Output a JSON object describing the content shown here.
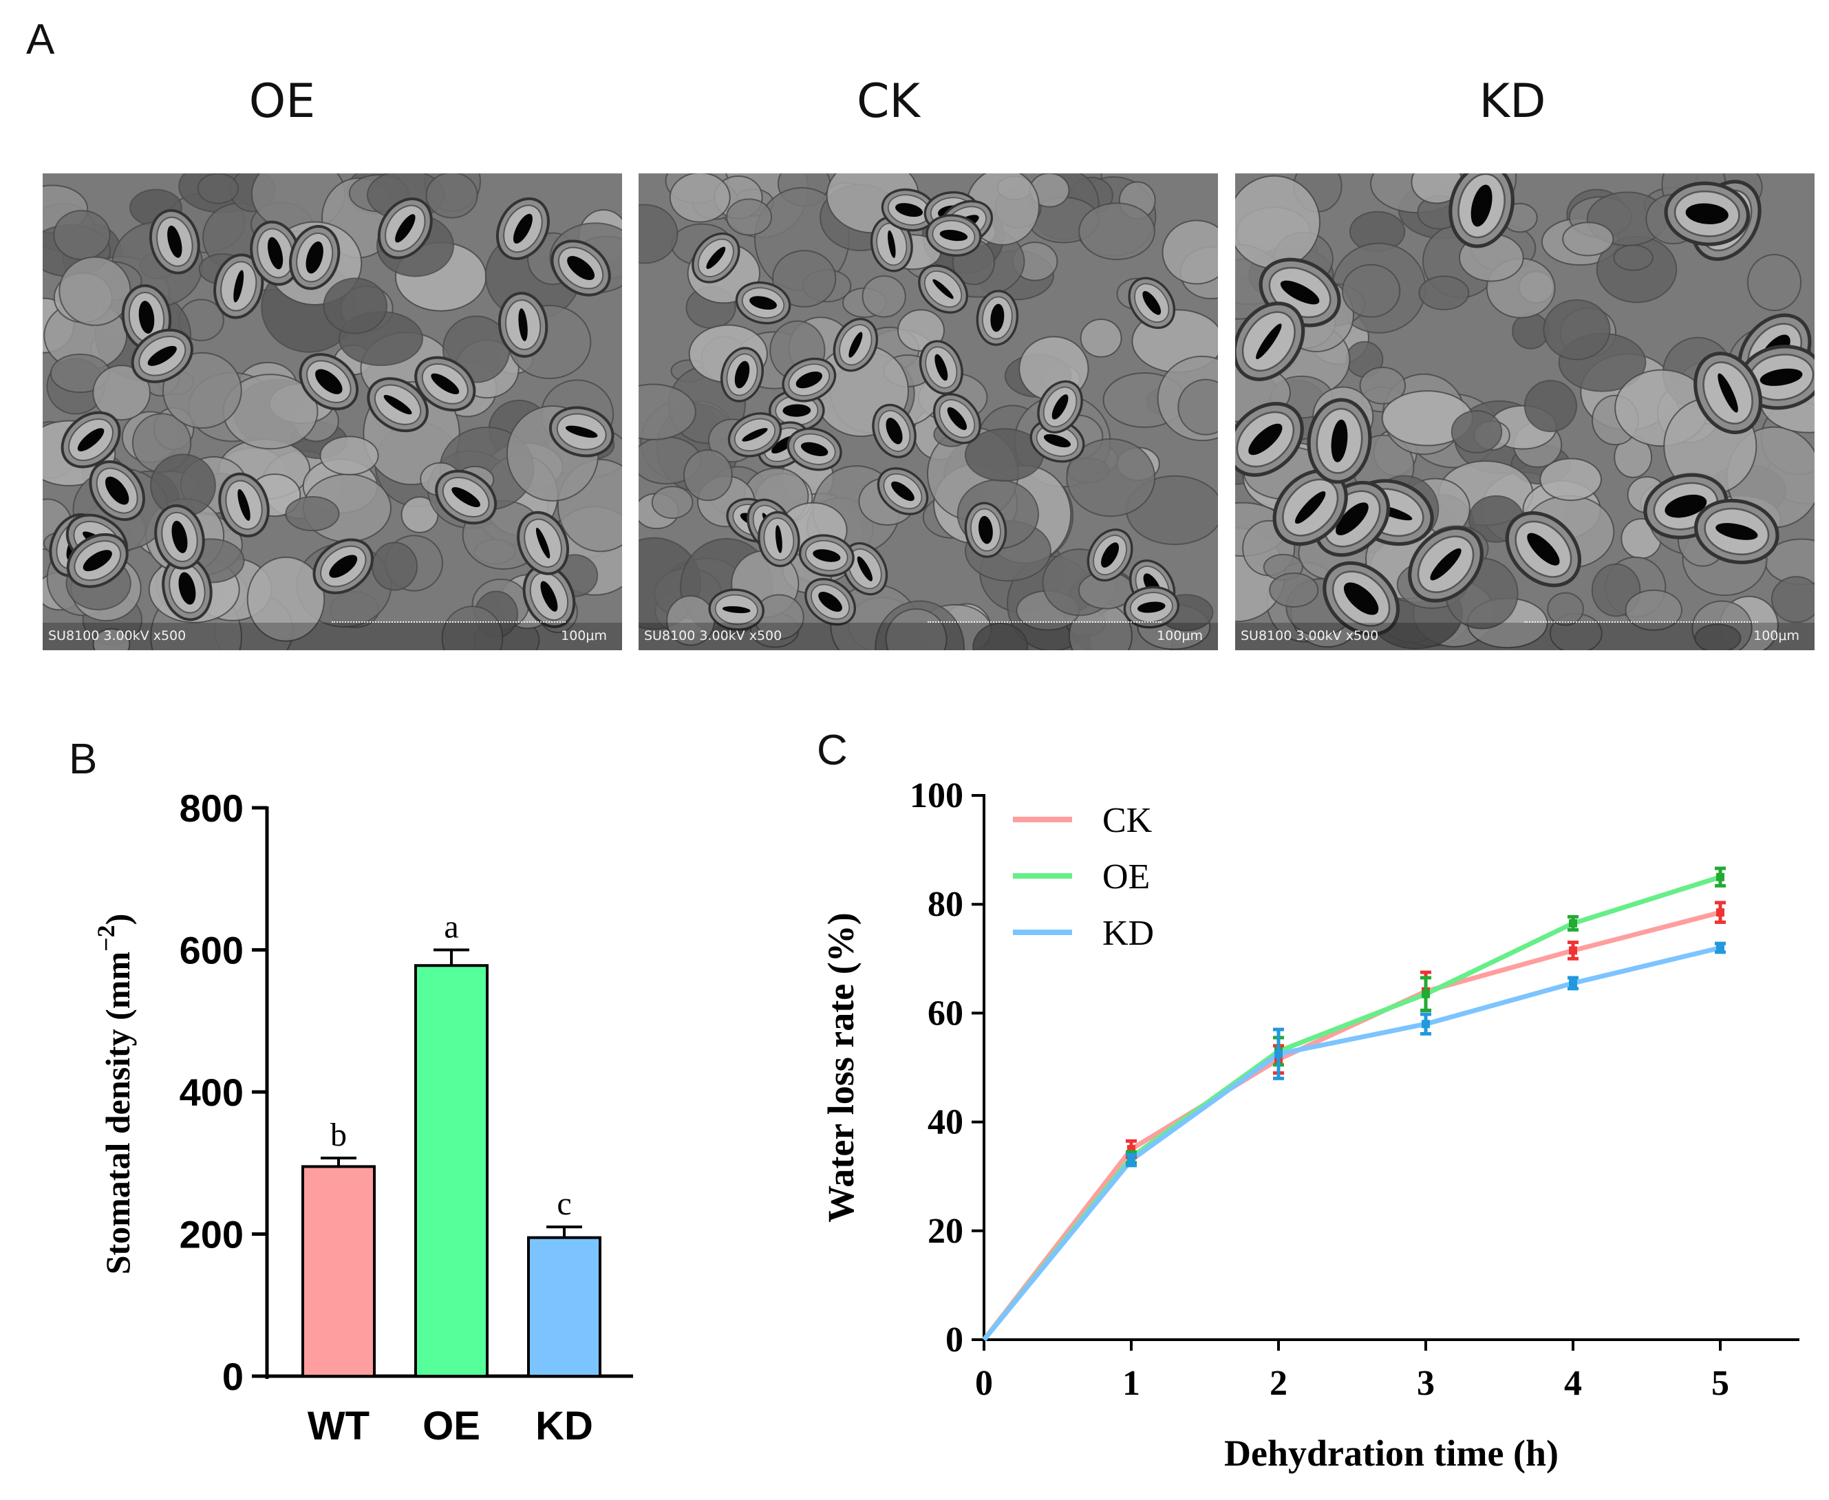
{
  "panels": {
    "a": {
      "letter": "A"
    },
    "b": {
      "letter": "B"
    },
    "c": {
      "letter": "C"
    }
  },
  "sem_images": [
    {
      "title": "OE",
      "info": "SU8100 3.00kV x500",
      "scale": "100μm",
      "density": "high"
    },
    {
      "title": "CK",
      "info": "SU8100 3.00kV x500",
      "scale": "100μm",
      "density": "medium"
    },
    {
      "title": "KD",
      "info": "SU8100 3.00kV x500",
      "scale": "100μm",
      "density": "low"
    }
  ],
  "chart_data": [
    {
      "type": "bar",
      "panel": "B",
      "categories": [
        "WT",
        "OE",
        "KD"
      ],
      "values": [
        295,
        578,
        195
      ],
      "errors": [
        12,
        22,
        15
      ],
      "significance": [
        "b",
        "a",
        "c"
      ],
      "colors": [
        "#ff9e9e",
        "#55ff99",
        "#7cc4ff"
      ],
      "ylabel": "Stomatal density (mm",
      "ylabel_sup": "−2",
      "ylabel_close": ")",
      "ylim": [
        0,
        800
      ],
      "yticks": [
        "0",
        "200",
        "400",
        "600",
        "800"
      ]
    },
    {
      "type": "line",
      "panel": "C",
      "x": [
        0,
        1,
        2,
        3,
        4,
        5
      ],
      "xticks": [
        "0",
        "1",
        "2",
        "3",
        "4",
        "5"
      ],
      "xlabel": "Dehydration time (h)",
      "ylabel": "Water loss rate (%)",
      "ylim": [
        0,
        100
      ],
      "yticks": [
        "0",
        "20",
        "40",
        "60",
        "80",
        "100"
      ],
      "legend_position": "top-left",
      "series": [
        {
          "name": "CK",
          "color": "#ff9e9e",
          "errcolor": "#ee3333",
          "values": [
            0,
            35,
            51.5,
            64,
            71.5,
            78.5
          ],
          "errors": [
            0,
            1.5,
            2.5,
            3.5,
            1.5,
            1.8
          ]
        },
        {
          "name": "OE",
          "color": "#66ee88",
          "errcolor": "#22aa33",
          "values": [
            0,
            33.5,
            53,
            63.5,
            76.5,
            85
          ],
          "errors": [
            0,
            1.0,
            2.5,
            3.0,
            1.2,
            1.6
          ]
        },
        {
          "name": "KD",
          "color": "#7cc4ff",
          "errcolor": "#2299dd",
          "values": [
            0,
            33,
            52.5,
            58,
            65.5,
            72
          ],
          "errors": [
            0,
            1.0,
            4.5,
            1.8,
            1.0,
            0.8
          ]
        }
      ]
    }
  ]
}
